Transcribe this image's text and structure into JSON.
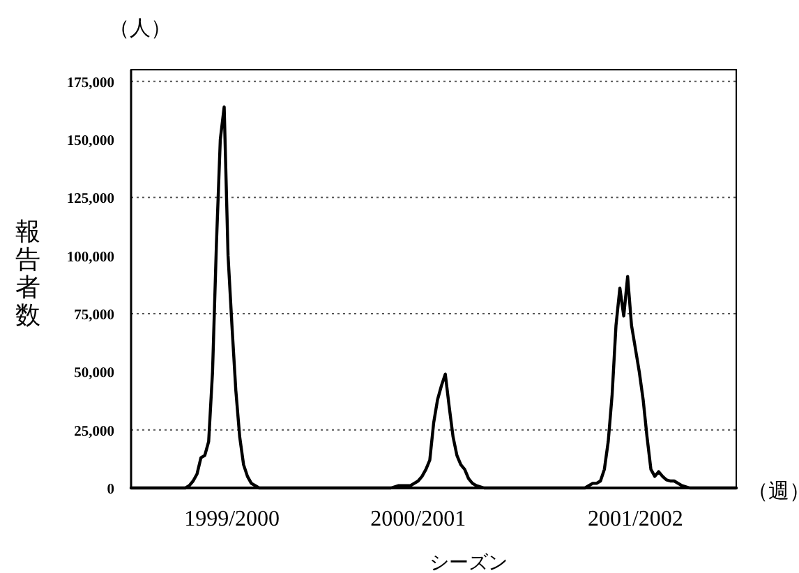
{
  "chart_data": {
    "type": "line",
    "xlabel": "シーズン",
    "ylabel": "報告者数",
    "annotations": [
      "（人）",
      "（週）"
    ],
    "categories": [
      null,
      null,
      null,
      null,
      null,
      null,
      null,
      null,
      null,
      null,
      null,
      null,
      null,
      null,
      null,
      null,
      null,
      null,
      null,
      null,
      null,
      null,
      null,
      null,
      null,
      null,
      "1999/2000",
      null,
      null,
      null,
      null,
      null,
      null,
      null,
      null,
      null,
      null,
      null,
      null,
      null,
      null,
      null,
      null,
      null,
      null,
      null,
      null,
      null,
      null,
      null,
      null,
      null,
      null,
      null,
      null,
      null,
      null,
      null,
      null,
      null,
      null,
      null,
      null,
      null,
      null,
      null,
      null,
      null,
      null,
      null,
      null,
      null,
      null,
      null,
      "2000/2001",
      null,
      null,
      null,
      null,
      null,
      null,
      null,
      null,
      null,
      null,
      null,
      null,
      null,
      null,
      null,
      null,
      null,
      null,
      null,
      null,
      null,
      null,
      null,
      null,
      null,
      null,
      null,
      null,
      null,
      null,
      null,
      null,
      null,
      null,
      null,
      null,
      null,
      null,
      null,
      null,
      null,
      null,
      null,
      null,
      null,
      null,
      null,
      null,
      null,
      null,
      null,
      null,
      null,
      null,
      null,
      "2001/2002",
      null,
      null,
      null,
      null,
      null,
      null,
      null,
      null,
      null,
      null,
      null,
      null,
      null,
      null,
      null,
      null,
      null,
      null,
      null,
      null,
      null,
      null,
      null,
      null,
      null,
      null
    ],
    "series": [
      {
        "color": "#000000",
        "values": [
          0,
          0,
          0,
          0,
          0,
          0,
          0,
          0,
          0,
          0,
          0,
          0,
          0,
          0,
          0,
          1000,
          3000,
          6000,
          13000,
          14000,
          20000,
          50000,
          105000,
          150000,
          164000,
          100000,
          70000,
          42000,
          22000,
          10000,
          5000,
          2000,
          1000,
          0,
          0,
          0,
          0,
          0,
          0,
          0,
          0,
          0,
          0,
          0,
          0,
          0,
          0,
          0,
          0,
          0,
          0,
          0,
          0,
          0,
          0,
          0,
          0,
          0,
          0,
          0,
          0,
          0,
          0,
          0,
          0,
          0,
          0,
          0,
          500,
          1000,
          1000,
          1000,
          1000,
          2000,
          3000,
          5000,
          8000,
          12000,
          28000,
          38000,
          44000,
          49000,
          35000,
          22000,
          14000,
          10000,
          8000,
          4000,
          2000,
          1000,
          500,
          0,
          0,
          0,
          0,
          0,
          0,
          0,
          0,
          0,
          0,
          0,
          0,
          0,
          0,
          0,
          0,
          0,
          0,
          0,
          0,
          0,
          0,
          0,
          0,
          0,
          0,
          0,
          1000,
          2000,
          2000,
          3000,
          8000,
          20000,
          40000,
          70000,
          86000,
          74000,
          91000,
          70000,
          60000,
          50000,
          38000,
          22000,
          8000,
          5000,
          7000,
          5000,
          3500,
          3000,
          3000,
          2000,
          1000,
          500,
          0,
          0,
          0,
          0,
          0,
          0,
          0,
          0,
          0,
          0,
          0,
          0,
          0
        ]
      }
    ],
    "ylim": [
      0,
      180000
    ],
    "yticks": [
      {
        "value": 0,
        "label": "0"
      },
      {
        "value": 25000,
        "label": "25,000"
      },
      {
        "value": 50000,
        "label": "50,000"
      },
      {
        "value": 75000,
        "label": "75,000"
      },
      {
        "value": 100000,
        "label": "100,000"
      },
      {
        "value": 125000,
        "label": "125,000"
      },
      {
        "value": 150000,
        "label": "150,000"
      },
      {
        "value": 175000,
        "label": "175,000"
      }
    ],
    "ref_lines": [
      {
        "axis": "y",
        "value": 25000,
        "color": "#555555",
        "line_style": "dotted"
      },
      {
        "axis": "y",
        "value": 75000,
        "color": "#555555",
        "line_style": "dotted"
      },
      {
        "axis": "y",
        "value": 125000,
        "color": "#555555",
        "line_style": "dotted"
      },
      {
        "axis": "y",
        "value": 175000,
        "color": "#555555",
        "line_style": "dotted"
      }
    ],
    "line_style": "solid",
    "marker": "none",
    "grid": false
  }
}
